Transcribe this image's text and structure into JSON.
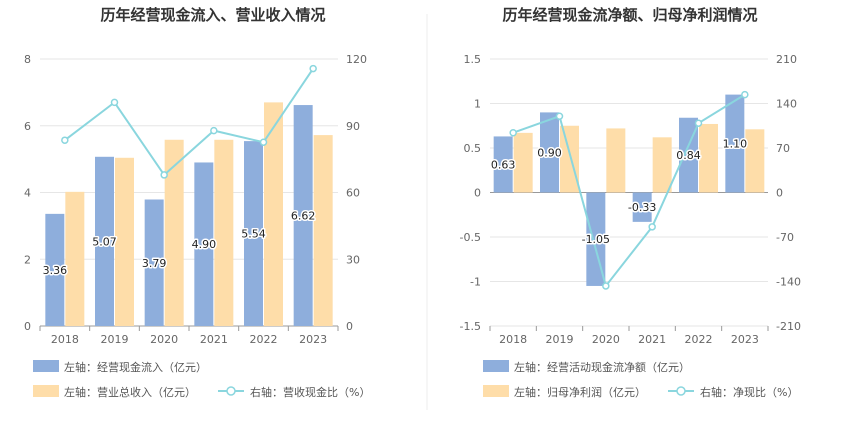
{
  "colors": {
    "bar1": "#8eaedc",
    "bar2": "#fedda9",
    "line": "#8ad6de",
    "grid": "#e6e6e6",
    "axis": "#999999"
  },
  "chart_data": [
    {
      "type": "bar",
      "title": "历年经营现金流入、营业收入情况",
      "categories": [
        "2018",
        "2019",
        "2020",
        "2021",
        "2022",
        "2023"
      ],
      "left_axis": {
        "ylim": [
          0,
          8
        ],
        "ticks": [
          "0",
          "2",
          "4",
          "6",
          "8"
        ]
      },
      "right_axis": {
        "ylim": [
          0,
          120
        ],
        "ticks": [
          "0",
          "30",
          "60",
          "90",
          "120"
        ]
      },
      "grid": true,
      "series": [
        {
          "name": "左轴：经营现金流入（亿元）",
          "kind": "bar",
          "axis": "left",
          "values": [
            3.36,
            5.07,
            3.79,
            4.9,
            5.54,
            6.62
          ],
          "labels": [
            "3.36",
            "5.07",
            "3.79",
            "4.90",
            "5.54",
            "6.62"
          ]
        },
        {
          "name": "左轴：营业总收入（亿元）",
          "kind": "bar",
          "axis": "left",
          "values": [
            4.02,
            5.04,
            5.58,
            5.58,
            6.7,
            5.72
          ]
        },
        {
          "name": "右轴：营收现金比（%）",
          "kind": "line",
          "axis": "right",
          "values": [
            83.5,
            100.5,
            67.9,
            87.8,
            82.6,
            115.7
          ]
        }
      ],
      "legend": [
        "左轴：经营现金流入（亿元）",
        "左轴：营业总收入（亿元）",
        "右轴：营收现金比（%）"
      ]
    },
    {
      "type": "bar",
      "title": "历年经营现金流净额、归母净利润情况",
      "categories": [
        "2018",
        "2019",
        "2020",
        "2021",
        "2022",
        "2023"
      ],
      "left_axis": {
        "ylim": [
          -1.5,
          1.5
        ],
        "ticks": [
          "-1.5",
          "-1",
          "-0.5",
          "0",
          "0.5",
          "1",
          "1.5"
        ]
      },
      "right_axis": {
        "ylim": [
          -210,
          210
        ],
        "ticks": [
          "-210",
          "-140",
          "-70",
          "0",
          "70",
          "140",
          "210"
        ]
      },
      "grid": true,
      "series": [
        {
          "name": "左轴：经营活动现金流净额（亿元）",
          "kind": "bar",
          "axis": "left",
          "values": [
            0.63,
            0.9,
            -1.05,
            -0.33,
            0.84,
            1.1
          ],
          "labels": [
            "0.63",
            "0.90",
            "-1.05",
            "-0.33",
            "0.84",
            "1.10"
          ]
        },
        {
          "name": "左轴：归母净利润（亿元）",
          "kind": "bar",
          "axis": "left",
          "values": [
            0.67,
            0.75,
            0.72,
            0.62,
            0.77,
            0.71
          ]
        },
        {
          "name": "右轴：净现比（%）",
          "kind": "line",
          "axis": "right",
          "values": [
            94,
            120,
            -147,
            -54,
            109,
            154
          ]
        }
      ],
      "legend": [
        "左轴：经营活动现金流净额（亿元）",
        "左轴：归母净利润（亿元）",
        "右轴：净现比（%）"
      ]
    }
  ]
}
